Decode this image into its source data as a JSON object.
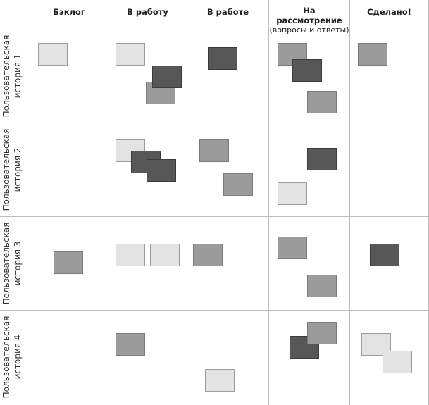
{
  "columns": [
    {
      "title": "Бэклог",
      "subtitle": ""
    },
    {
      "title": "В работу",
      "subtitle": ""
    },
    {
      "title": "В работе",
      "subtitle": ""
    },
    {
      "title": "На рассмотрение",
      "subtitle": "(вопросы и ответы)"
    },
    {
      "title": "Сделано!",
      "subtitle": ""
    }
  ],
  "rows": [
    {
      "line1": "Пользовательская",
      "line2": "история 1"
    },
    {
      "line1": "Пользовательская",
      "line2": "история 2"
    },
    {
      "line1": "Пользовательская",
      "line2": "история 3"
    },
    {
      "line1": "Пользовательская",
      "line2": "история 4"
    }
  ],
  "colors": {
    "light": "#e3e3e3",
    "mid": "#9b9b9b",
    "dark": "#575757",
    "grid": "#bdbdbd"
  }
}
